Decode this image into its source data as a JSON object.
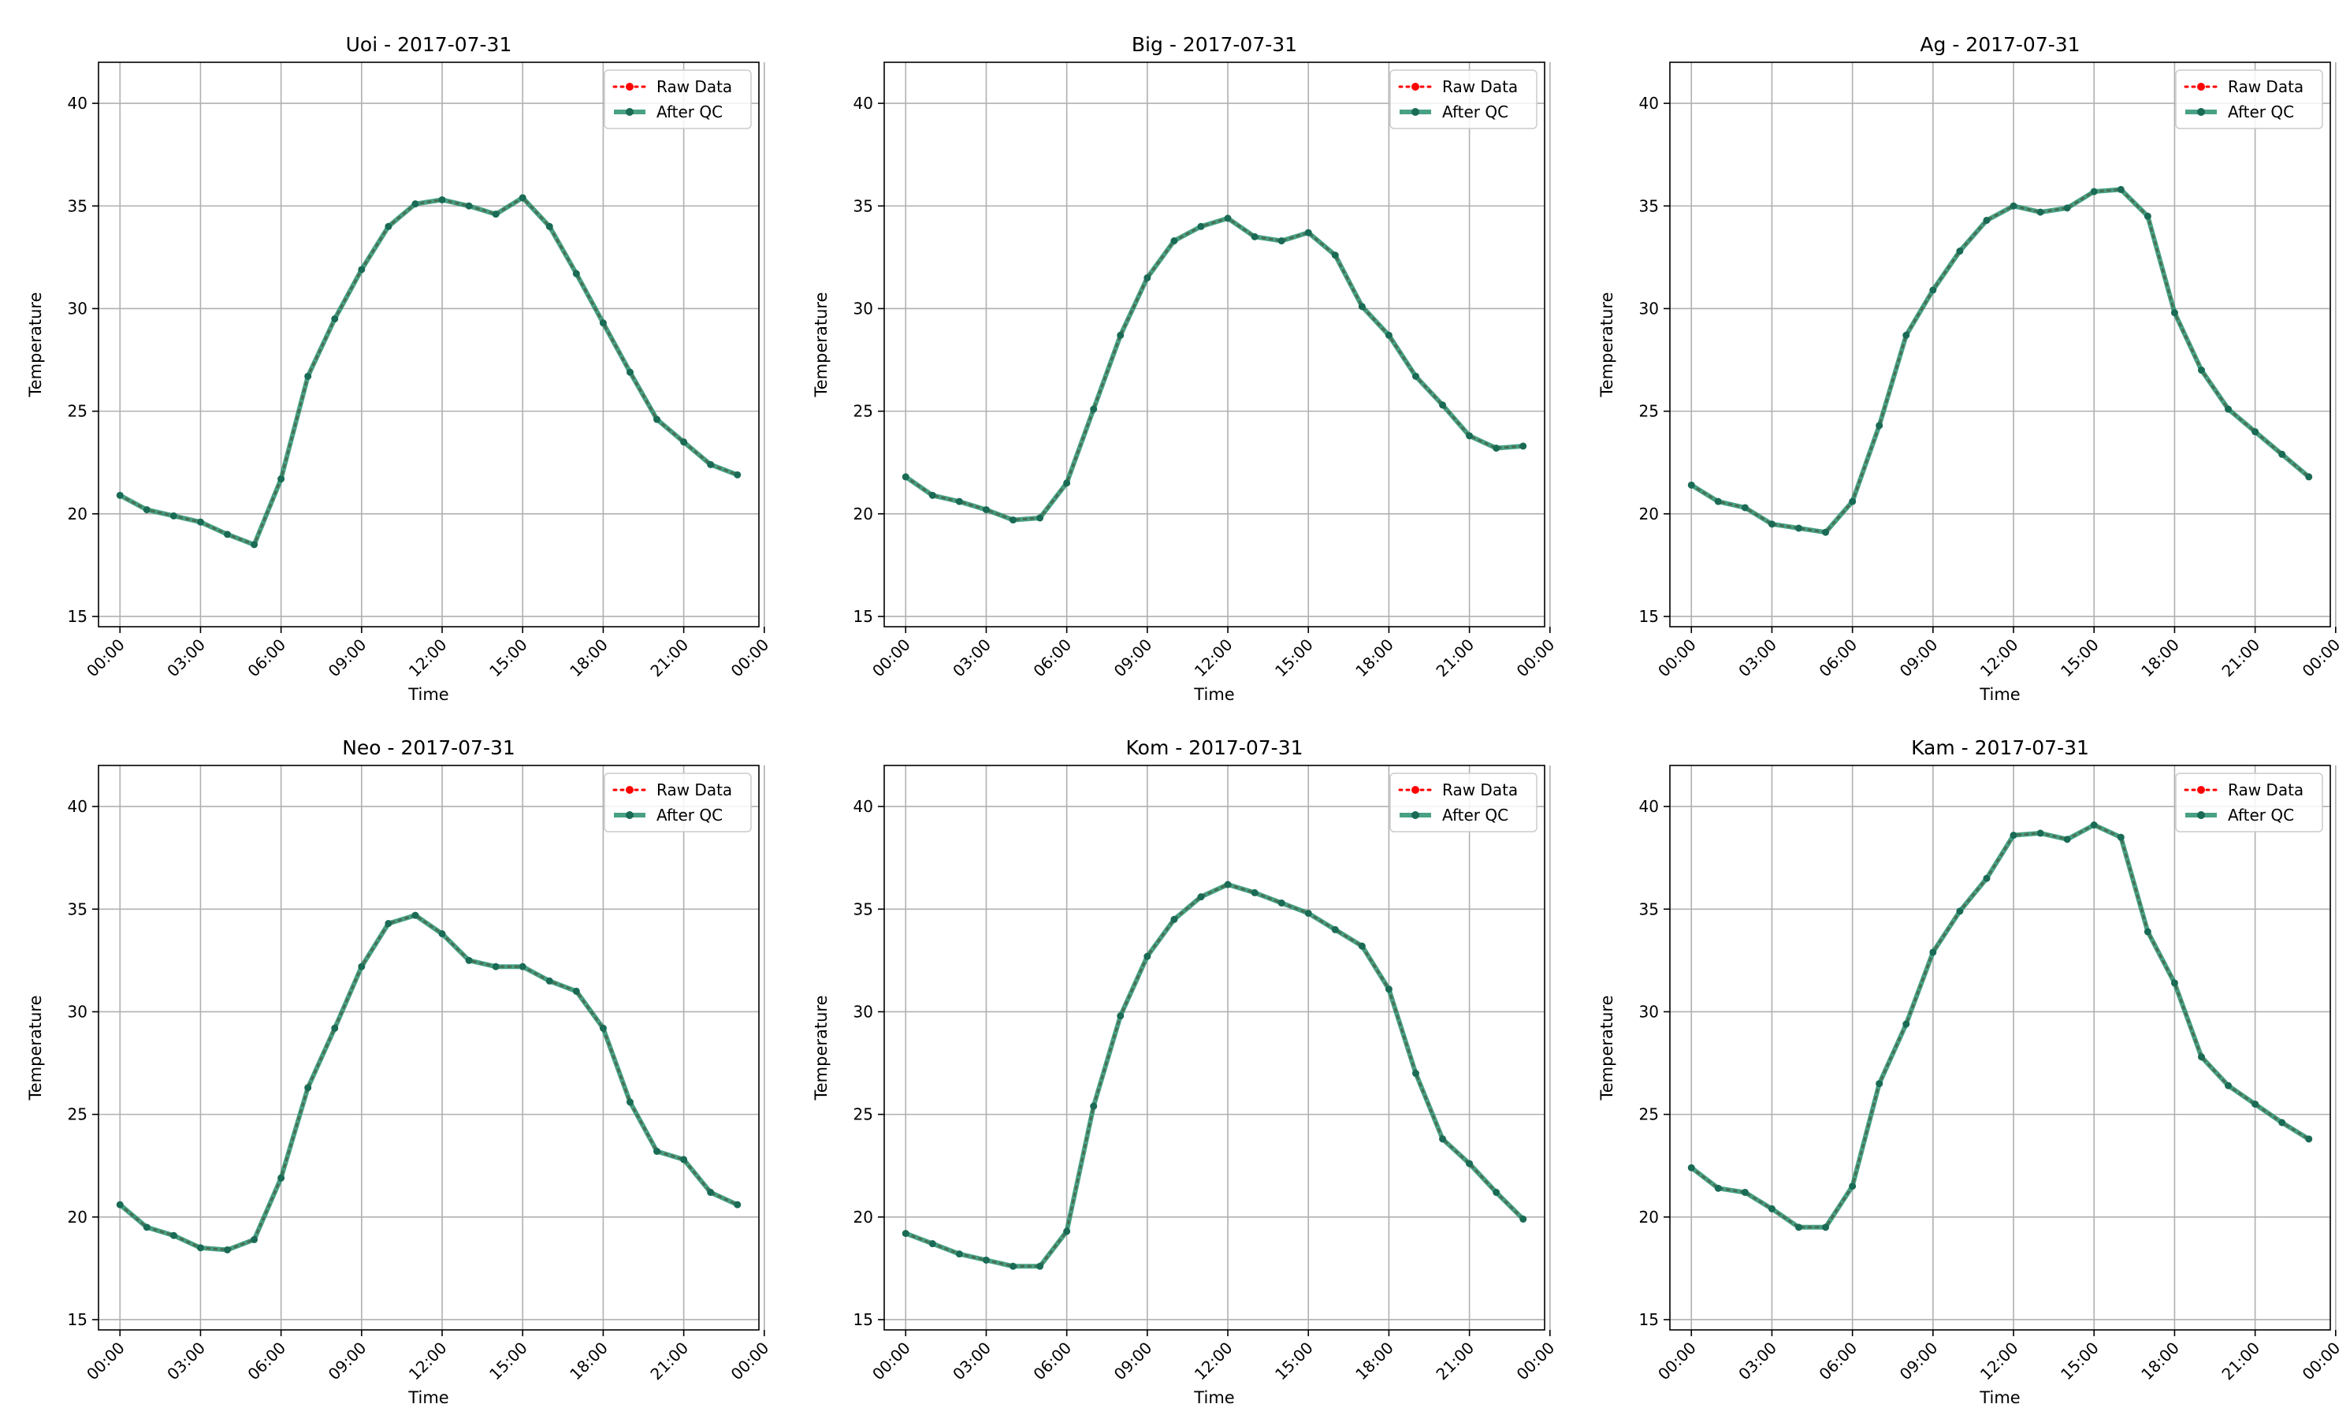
{
  "figure": {
    "colors": {
      "raw": "#ff0000",
      "qc": "#1a8a67",
      "qc_marker": "#1a6b55",
      "grid": "#b0b0b0"
    }
  },
  "chart_data": [
    {
      "type": "line",
      "title": "Uoi - 2017-07-31",
      "xlabel": "Time",
      "ylabel": "Temperature",
      "ylim": [
        14.5,
        42
      ],
      "xlim": [
        -0.8,
        23.8
      ],
      "xticks": [
        "00:00",
        "03:00",
        "06:00",
        "09:00",
        "12:00",
        "15:00",
        "18:00",
        "21:00",
        "00:00"
      ],
      "yticks": [
        15,
        20,
        25,
        30,
        35,
        40
      ],
      "grid": true,
      "legend": "top-right",
      "x": [
        0,
        1,
        2,
        3,
        4,
        5,
        6,
        7,
        8,
        9,
        10,
        11,
        12,
        13,
        14,
        15,
        16,
        17,
        18,
        19,
        20,
        21,
        22,
        23
      ],
      "series": [
        {
          "name": "Raw Data",
          "values": [
            20.9,
            20.2,
            19.9,
            19.6,
            19.0,
            18.5,
            21.7,
            26.7,
            29.5,
            31.9,
            34.0,
            35.1,
            35.3,
            35.0,
            34.6,
            35.4,
            34.0,
            31.7,
            29.3,
            26.9,
            24.6,
            23.5,
            22.4,
            21.9
          ]
        },
        {
          "name": "After QC",
          "values": [
            20.9,
            20.2,
            19.9,
            19.6,
            19.0,
            18.5,
            21.7,
            26.7,
            29.5,
            31.9,
            34.0,
            35.1,
            35.3,
            35.0,
            34.6,
            35.4,
            34.0,
            31.7,
            29.3,
            26.9,
            24.6,
            23.5,
            22.4,
            21.9
          ]
        }
      ]
    },
    {
      "type": "line",
      "title": "Big - 2017-07-31",
      "xlabel": "Time",
      "ylabel": "Temperature",
      "ylim": [
        14.5,
        42
      ],
      "xlim": [
        -0.8,
        23.8
      ],
      "xticks": [
        "00:00",
        "03:00",
        "06:00",
        "09:00",
        "12:00",
        "15:00",
        "18:00",
        "21:00",
        "00:00"
      ],
      "yticks": [
        15,
        20,
        25,
        30,
        35,
        40
      ],
      "grid": true,
      "legend": "top-right",
      "x": [
        0,
        1,
        2,
        3,
        4,
        5,
        6,
        7,
        8,
        9,
        10,
        11,
        12,
        13,
        14,
        15,
        16,
        17,
        18,
        19,
        20,
        21,
        22,
        23
      ],
      "series": [
        {
          "name": "Raw Data",
          "values": [
            21.8,
            20.9,
            20.6,
            20.2,
            19.7,
            19.8,
            21.5,
            25.1,
            28.7,
            31.5,
            33.3,
            34.0,
            34.4,
            33.5,
            33.3,
            33.7,
            32.6,
            30.1,
            28.7,
            26.7,
            25.3,
            23.8,
            23.2,
            23.3
          ]
        },
        {
          "name": "After QC",
          "values": [
            21.8,
            20.9,
            20.6,
            20.2,
            19.7,
            19.8,
            21.5,
            25.1,
            28.7,
            31.5,
            33.3,
            34.0,
            34.4,
            33.5,
            33.3,
            33.7,
            32.6,
            30.1,
            28.7,
            26.7,
            25.3,
            23.8,
            23.2,
            23.3
          ]
        }
      ]
    },
    {
      "type": "line",
      "title": "Ag - 2017-07-31",
      "xlabel": "Time",
      "ylabel": "Temperature",
      "ylim": [
        14.5,
        42
      ],
      "xlim": [
        -0.8,
        23.8
      ],
      "xticks": [
        "00:00",
        "03:00",
        "06:00",
        "09:00",
        "12:00",
        "15:00",
        "18:00",
        "21:00",
        "00:00"
      ],
      "yticks": [
        15,
        20,
        25,
        30,
        35,
        40
      ],
      "grid": true,
      "legend": "top-right",
      "x": [
        0,
        1,
        2,
        3,
        4,
        5,
        6,
        7,
        8,
        9,
        10,
        11,
        12,
        13,
        14,
        15,
        16,
        17,
        18,
        19,
        20,
        21,
        22,
        23
      ],
      "series": [
        {
          "name": "Raw Data",
          "values": [
            21.4,
            20.6,
            20.3,
            19.5,
            19.3,
            19.1,
            20.6,
            24.3,
            28.7,
            30.9,
            32.8,
            34.3,
            35.0,
            34.7,
            34.9,
            35.7,
            35.8,
            34.5,
            29.8,
            27.0,
            25.1,
            24.0,
            22.9,
            21.8
          ]
        },
        {
          "name": "After QC",
          "values": [
            21.4,
            20.6,
            20.3,
            19.5,
            19.3,
            19.1,
            20.6,
            24.3,
            28.7,
            30.9,
            32.8,
            34.3,
            35.0,
            34.7,
            34.9,
            35.7,
            35.8,
            34.5,
            29.8,
            27.0,
            25.1,
            24.0,
            22.9,
            21.8
          ]
        }
      ]
    },
    {
      "type": "line",
      "title": "Neo - 2017-07-31",
      "xlabel": "Time",
      "ylabel": "Temperature",
      "ylim": [
        14.5,
        42
      ],
      "xlim": [
        -0.8,
        23.8
      ],
      "xticks": [
        "00:00",
        "03:00",
        "06:00",
        "09:00",
        "12:00",
        "15:00",
        "18:00",
        "21:00",
        "00:00"
      ],
      "yticks": [
        15,
        20,
        25,
        30,
        35,
        40
      ],
      "grid": true,
      "legend": "top-right",
      "x": [
        0,
        1,
        2,
        3,
        4,
        5,
        6,
        7,
        8,
        9,
        10,
        11,
        12,
        13,
        14,
        15,
        16,
        17,
        18,
        19,
        20,
        21,
        22,
        23
      ],
      "series": [
        {
          "name": "Raw Data",
          "values": [
            20.6,
            19.5,
            19.1,
            18.5,
            18.4,
            18.9,
            21.9,
            26.3,
            29.2,
            32.2,
            34.3,
            34.7,
            33.8,
            32.5,
            32.2,
            32.2,
            31.5,
            31.0,
            29.2,
            25.6,
            23.2,
            22.8,
            21.2,
            20.6
          ]
        },
        {
          "name": "After QC",
          "values": [
            20.6,
            19.5,
            19.1,
            18.5,
            18.4,
            18.9,
            21.9,
            26.3,
            29.2,
            32.2,
            34.3,
            34.7,
            33.8,
            32.5,
            32.2,
            32.2,
            31.5,
            31.0,
            29.2,
            25.6,
            23.2,
            22.8,
            21.2,
            20.6
          ]
        }
      ]
    },
    {
      "type": "line",
      "title": "Kom - 2017-07-31",
      "xlabel": "Time",
      "ylabel": "Temperature",
      "ylim": [
        14.5,
        42
      ],
      "xlim": [
        -0.8,
        23.8
      ],
      "xticks": [
        "00:00",
        "03:00",
        "06:00",
        "09:00",
        "12:00",
        "15:00",
        "18:00",
        "21:00",
        "00:00"
      ],
      "yticks": [
        15,
        20,
        25,
        30,
        35,
        40
      ],
      "grid": true,
      "legend": "top-right",
      "x": [
        0,
        1,
        2,
        3,
        4,
        5,
        6,
        7,
        8,
        9,
        10,
        11,
        12,
        13,
        14,
        15,
        16,
        17,
        18,
        19,
        20,
        21,
        22,
        23
      ],
      "series": [
        {
          "name": "Raw Data",
          "values": [
            19.2,
            18.7,
            18.2,
            17.9,
            17.6,
            17.6,
            19.3,
            25.4,
            29.8,
            32.7,
            34.5,
            35.6,
            36.2,
            35.8,
            35.3,
            34.8,
            34.0,
            33.2,
            31.1,
            27.0,
            23.8,
            22.6,
            21.2,
            19.9
          ]
        },
        {
          "name": "After QC",
          "values": [
            19.2,
            18.7,
            18.2,
            17.9,
            17.6,
            17.6,
            19.3,
            25.4,
            29.8,
            32.7,
            34.5,
            35.6,
            36.2,
            35.8,
            35.3,
            34.8,
            34.0,
            33.2,
            31.1,
            27.0,
            23.8,
            22.6,
            21.2,
            19.9
          ]
        }
      ]
    },
    {
      "type": "line",
      "title": "Kam - 2017-07-31",
      "xlabel": "Time",
      "ylabel": "Temperature",
      "ylim": [
        14.5,
        42
      ],
      "xlim": [
        -0.8,
        23.8
      ],
      "xticks": [
        "00:00",
        "03:00",
        "06:00",
        "09:00",
        "12:00",
        "15:00",
        "18:00",
        "21:00",
        "00:00"
      ],
      "yticks": [
        15,
        20,
        25,
        30,
        35,
        40
      ],
      "grid": true,
      "legend": "top-right",
      "x": [
        0,
        1,
        2,
        3,
        4,
        5,
        6,
        7,
        8,
        9,
        10,
        11,
        12,
        13,
        14,
        15,
        16,
        17,
        18,
        19,
        20,
        21,
        22,
        23
      ],
      "series": [
        {
          "name": "Raw Data",
          "values": [
            22.4,
            21.4,
            21.2,
            20.4,
            19.5,
            19.5,
            21.5,
            26.5,
            29.4,
            32.9,
            34.9,
            36.5,
            38.6,
            38.7,
            38.4,
            39.1,
            38.5,
            33.9,
            31.4,
            27.8,
            26.4,
            25.5,
            24.6,
            23.8
          ]
        },
        {
          "name": "After QC",
          "values": [
            22.4,
            21.4,
            21.2,
            20.4,
            19.5,
            19.5,
            21.5,
            26.5,
            29.4,
            32.9,
            34.9,
            36.5,
            38.6,
            38.7,
            38.4,
            39.1,
            38.5,
            33.9,
            31.4,
            27.8,
            26.4,
            25.5,
            24.6,
            23.8
          ]
        }
      ]
    }
  ]
}
